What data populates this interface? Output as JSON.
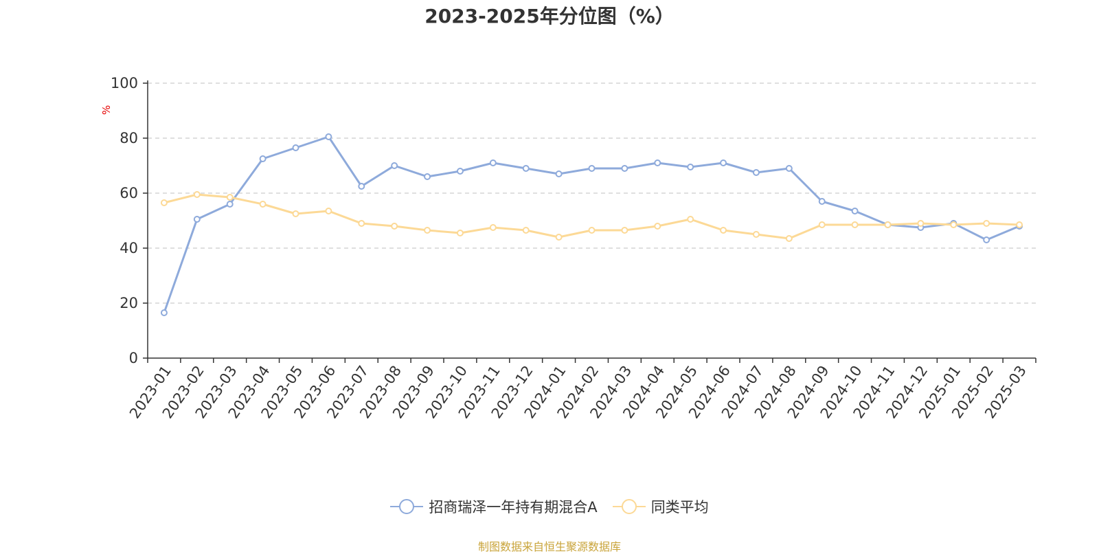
{
  "chart_data": {
    "type": "line",
    "title": "2023-2025年分位图（%）",
    "xlabel": "",
    "ylabel": "%",
    "ylim": [
      0,
      100
    ],
    "yticks": [
      0,
      20,
      40,
      60,
      80,
      100
    ],
    "grid": true,
    "legend_position": "bottom",
    "categories": [
      "2023-01",
      "2023-02",
      "2023-03",
      "2023-04",
      "2023-05",
      "2023-06",
      "2023-07",
      "2023-08",
      "2023-09",
      "2023-10",
      "2023-11",
      "2023-12",
      "2024-01",
      "2024-02",
      "2024-03",
      "2024-04",
      "2024-05",
      "2024-06",
      "2024-07",
      "2024-08",
      "2024-09",
      "2024-10",
      "2024-11",
      "2024-12",
      "2025-01",
      "2025-02",
      "2025-03"
    ],
    "series": [
      {
        "name": "招商瑞泽一年持有期混合A",
        "color": "#8eaadb",
        "values": [
          16.5,
          50.5,
          56.0,
          72.5,
          76.5,
          80.5,
          62.5,
          70.0,
          66.0,
          68.0,
          71.0,
          69.0,
          67.0,
          69.0,
          69.0,
          71.0,
          69.5,
          71.0,
          67.5,
          69.0,
          57.0,
          53.5,
          48.5,
          47.5,
          49.0,
          43.0,
          48.0
        ]
      },
      {
        "name": "同类平均",
        "color": "#fcd996",
        "values": [
          56.5,
          59.5,
          58.5,
          56.0,
          52.5,
          53.5,
          49.0,
          48.0,
          46.5,
          45.5,
          47.5,
          46.5,
          44.0,
          46.5,
          46.5,
          48.0,
          50.5,
          46.5,
          45.0,
          43.5,
          48.5,
          48.5,
          48.5,
          49.0,
          48.5,
          49.0,
          48.5
        ]
      }
    ]
  },
  "source_text": "制图数据来自恒生聚源数据库",
  "colors": {
    "axis": "#333333",
    "grid": "#cccccc",
    "ylabel": "#e60000",
    "source": "#c9a43a"
  }
}
